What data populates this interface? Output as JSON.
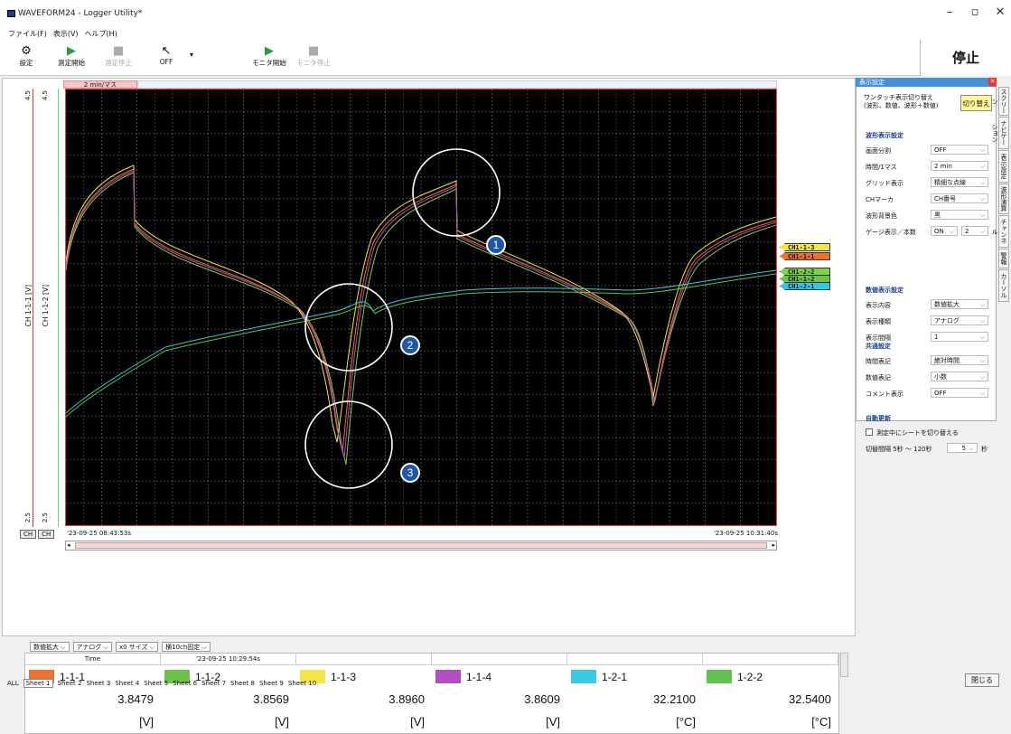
{
  "window": {
    "title": "WAVEFORM24 - Logger Utility*",
    "minimize": "–",
    "maximize": "▫",
    "close": "✕"
  },
  "menu": [
    "ファイル(F)",
    "表示(V)",
    "ヘルプ(H)"
  ],
  "toolbar": {
    "settings": "設定",
    "start_measure": "測定開始",
    "stop_measure": "測定停止",
    "cursor": "OFF",
    "start_monitor": "モニタ開始",
    "stop_monitor": "モニタ停止"
  },
  "status": "停止",
  "graph": {
    "scale_tab": "2 min/マス",
    "y_axis1": {
      "top": "4.5",
      "bottom": "2.5",
      "label": "CH 1-1-1 [V]"
    },
    "y_axis2": {
      "top": "4.5",
      "bottom": "2.5",
      "label": "CH 1-1-2 [V]"
    },
    "ch_buttons": [
      "CH",
      "CH"
    ],
    "time_start": "'23-09-25 08:43:53s",
    "time_end": "'23-09-25 10:31:40s",
    "channel_tags": [
      {
        "label": "CH1-1-3",
        "color": "#f2e64a"
      },
      {
        "label": "CH1-1-1",
        "color": "#f07030"
      },
      {
        "label": "CH1-2-2",
        "color": "#7cd24a"
      },
      {
        "label": "CH1-1-2",
        "color": "#6cc24a"
      },
      {
        "label": "CH1-2-1",
        "color": "#38c8e0"
      }
    ],
    "markers": [
      "1",
      "2",
      "3"
    ],
    "series_colors": [
      "#f07030",
      "#7cd24a",
      "#f2e64a",
      "#b050c0",
      "#38c8e0",
      "#60c050"
    ]
  },
  "data_panel": {
    "dropdowns": [
      "数値拡大",
      "アナログ",
      "x0 サイズ",
      "横10ch固定"
    ],
    "time_header": "Time",
    "time_value": "'23-09-25 10:29:54s",
    "channels": [
      {
        "name": "1-1-1",
        "color": "#f07030",
        "value": "3.8479",
        "unit": "[V]"
      },
      {
        "name": "1-1-2",
        "color": "#6cc24a",
        "value": "3.8569",
        "unit": "[V]"
      },
      {
        "name": "1-1-3",
        "color": "#f2e64a",
        "value": "3.8960",
        "unit": "[V]"
      },
      {
        "name": "1-1-4",
        "color": "#b050c0",
        "value": "3.8609",
        "unit": "[V]"
      },
      {
        "name": "1-2-1",
        "color": "#38c8e0",
        "value": "32.2100",
        "unit": "[°C]"
      },
      {
        "name": "1-2-2",
        "color": "#60c050",
        "value": "32.5400",
        "unit": "[°C]"
      }
    ]
  },
  "sheets": {
    "all": "ALL",
    "tabs": [
      "Sheet 1",
      "Sheet 2",
      "Sheet 3",
      "Sheet 4",
      "Sheet 5",
      "Sheet 6",
      "Sheet 7",
      "Sheet 8",
      "Sheet 9",
      "Sheet 10"
    ]
  },
  "close_button": "閉じる",
  "side_panel": {
    "title": "表示設定",
    "close": "✕",
    "one_touch_label": "ワンタッチ表示切り替え\n(波形、数値、波形＋数値)",
    "switch_button": "切り替え",
    "waveform_section": "波形表示設定",
    "waveform_rows": [
      {
        "label": "画面分割",
        "value": "OFF"
      },
      {
        "label": "時間/1マス",
        "value": "2 min"
      },
      {
        "label": "グリッド表示",
        "value": "精細な点線"
      },
      {
        "label": "CHマーカ",
        "value": "CH番号"
      },
      {
        "label": "波形背景色",
        "value": "黒"
      },
      {
        "label": "ゲージ表示／本数",
        "value": "ON"
      }
    ],
    "gauge_count": "2",
    "numeric_section": "数値表示設定",
    "numeric_rows": [
      {
        "label": "表示内容",
        "value": "数値拡大"
      },
      {
        "label": "表示種類",
        "value": "アナログ"
      },
      {
        "label": "表示間隔",
        "value": "1"
      }
    ],
    "common_section": "共通設定",
    "common_rows": [
      {
        "label": "時間表記",
        "value": "絶対時間"
      },
      {
        "label": "数値表記",
        "value": "小数"
      },
      {
        "label": "コメント表示",
        "value": "OFF"
      }
    ],
    "auto_section": "自動更新",
    "auto_checkbox": "測定中にシートを切り替える",
    "interval_label": "切替間隔 5秒 ～ 120秒",
    "interval_value": "5",
    "interval_unit": "秒",
    "tabs": [
      "スクリーン",
      "ナビゲーション",
      "表示設定",
      "波形演算",
      "チャンネル",
      "警報",
      "カーソル"
    ]
  }
}
